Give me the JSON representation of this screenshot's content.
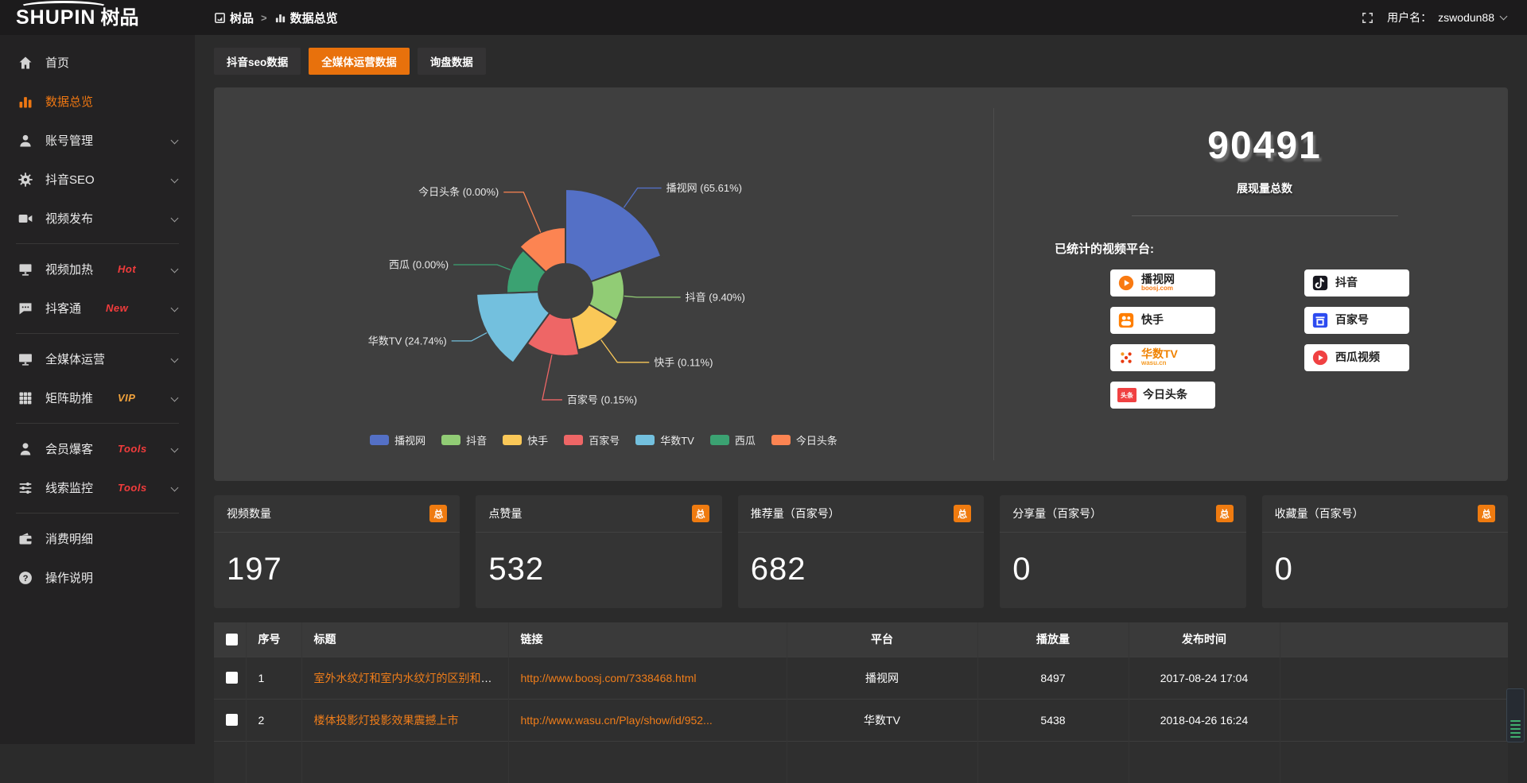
{
  "colors": {
    "accent": "#e8710c",
    "hot": "#f23c3c",
    "vip": "#f2a33c",
    "link": "#ef7d1a"
  },
  "header": {
    "logo_en": "SHUPIN",
    "logo_cn": "树品",
    "breadcrumb": {
      "items": [
        "树品",
        "数据总览"
      ],
      "separator": ">"
    },
    "user_label": "用户名：",
    "user_name": "zswodun88"
  },
  "sidebar": {
    "items": [
      {
        "label": "首页",
        "icon": "home-icon"
      },
      {
        "label": "数据总览",
        "icon": "bar-chart-icon",
        "active": true
      },
      {
        "label": "账号管理",
        "icon": "user-icon",
        "chevron": true
      },
      {
        "label": "抖音SEO",
        "icon": "gear-icon",
        "chevron": true
      },
      {
        "label": "视频发布",
        "icon": "video-icon",
        "chevron": true,
        "divider_after": true
      },
      {
        "label": "视频加热",
        "icon": "screen-icon",
        "badge": "Hot",
        "badge_color": "hot",
        "chevron": true
      },
      {
        "label": "抖客通",
        "icon": "chat-icon",
        "badge": "New",
        "badge_color": "hot",
        "chevron": true,
        "divider_after": true
      },
      {
        "label": "全媒体运营",
        "icon": "monitor-icon",
        "chevron": true
      },
      {
        "label": "矩阵助推",
        "icon": "grid-icon",
        "badge": "VIP",
        "badge_color": "vip",
        "chevron": true,
        "divider_after": true
      },
      {
        "label": "会员爆客",
        "icon": "member-icon",
        "badge": "Tools",
        "badge_color": "hot",
        "chevron": true
      },
      {
        "label": "线索监控",
        "icon": "sliders-icon",
        "badge": "Tools",
        "badge_color": "hot",
        "chevron": true,
        "divider_after": true
      },
      {
        "label": "消费明细",
        "icon": "wallet-icon"
      },
      {
        "label": "操作说明",
        "icon": "help-icon"
      }
    ]
  },
  "tabs": [
    {
      "label": "抖音seo数据"
    },
    {
      "label": "全媒体运营数据",
      "active": true
    },
    {
      "label": "询盘数据"
    }
  ],
  "chart_data": {
    "type": "pie",
    "variant": "nightingale-rose",
    "labels": [
      "播视网",
      "抖音",
      "快手",
      "百家号",
      "华数TV",
      "西瓜",
      "今日头条"
    ],
    "values_percent": [
      65.61,
      9.4,
      0.11,
      0.15,
      24.74,
      0.0,
      0.0
    ],
    "label_texts": [
      "播视网 (65.61%)",
      "抖音 (9.40%)",
      "快手 (0.11%)",
      "百家号 (0.15%)",
      "华数TV (24.74%)",
      "西瓜 (0.00%)",
      "今日头条 (0.00%)"
    ],
    "colors": [
      "#5470c6",
      "#91cc75",
      "#fac858",
      "#ee6666",
      "#73c0de",
      "#3ba272",
      "#fc8452"
    ],
    "legend": [
      "播视网",
      "抖音",
      "快手",
      "百家号",
      "华数TV",
      "西瓜",
      "今日头条"
    ],
    "legend_position": "bottom",
    "layout": {
      "center": [
        442,
        238
      ],
      "angles": [
        70,
        50,
        48,
        48,
        52,
        46,
        46
      ],
      "radii": [
        128,
        74,
        76,
        82,
        112,
        74,
        80
      ],
      "inner_radius": 34,
      "label_ext1": [
        30,
        16,
        35,
        58,
        22,
        18,
        55
      ],
      "label_ext2": [
        30,
        55,
        40,
        25,
        25,
        55,
        25
      ],
      "label_dir": [
        1,
        1,
        1,
        1,
        -1,
        -1,
        -1
      ]
    }
  },
  "summary": {
    "total": "90491",
    "total_label": "展现量总数",
    "platforms_title": "已统计的视频平台:",
    "platforms": [
      {
        "name": "播视网",
        "sub": "boosj.com",
        "sub_color": "#f97a12",
        "icon": "boosj-logo"
      },
      {
        "name": "抖音",
        "icon": "douyin-logo"
      },
      {
        "name": "快手",
        "icon": "kuaishou-logo"
      },
      {
        "name": "百家号",
        "icon": "baijiahao-logo"
      },
      {
        "name": "华数TV",
        "name_color": "#f08200",
        "sub": "wasu.cn",
        "sub_color": "#f59a23",
        "icon": "wasu-logo"
      },
      {
        "name": "西瓜视频",
        "icon": "xigua-logo"
      },
      {
        "name": "今日头条",
        "icon": "toutiao-logo",
        "icon_text": "头条"
      }
    ]
  },
  "stat_cards": [
    {
      "label": "视频数量",
      "badge": "总",
      "value": "197"
    },
    {
      "label": "点赞量",
      "badge": "总",
      "value": "532"
    },
    {
      "label": "推荐量（百家号）",
      "badge": "总",
      "value": "682"
    },
    {
      "label": "分享量（百家号）",
      "badge": "总",
      "value": "0"
    },
    {
      "label": "收藏量（百家号）",
      "badge": "总",
      "value": "0"
    }
  ],
  "table": {
    "headers": [
      "序号",
      "标题",
      "链接",
      "平台",
      "播放量",
      "发布时间",
      ""
    ],
    "rows": [
      {
        "index": "1",
        "title": "室外水纹灯和室内水纹灯的区别和简介",
        "link": "http://www.boosj.com/7338468.html",
        "platform": "播视网",
        "views": "8497",
        "published": "2017-08-24 17:04"
      },
      {
        "index": "2",
        "title": "楼体投影灯投影效果震撼上市",
        "link": "http://www.wasu.cn/Play/show/id/952...",
        "platform": "华数TV",
        "views": "5438",
        "published": "2018-04-26 16:24"
      }
    ]
  }
}
